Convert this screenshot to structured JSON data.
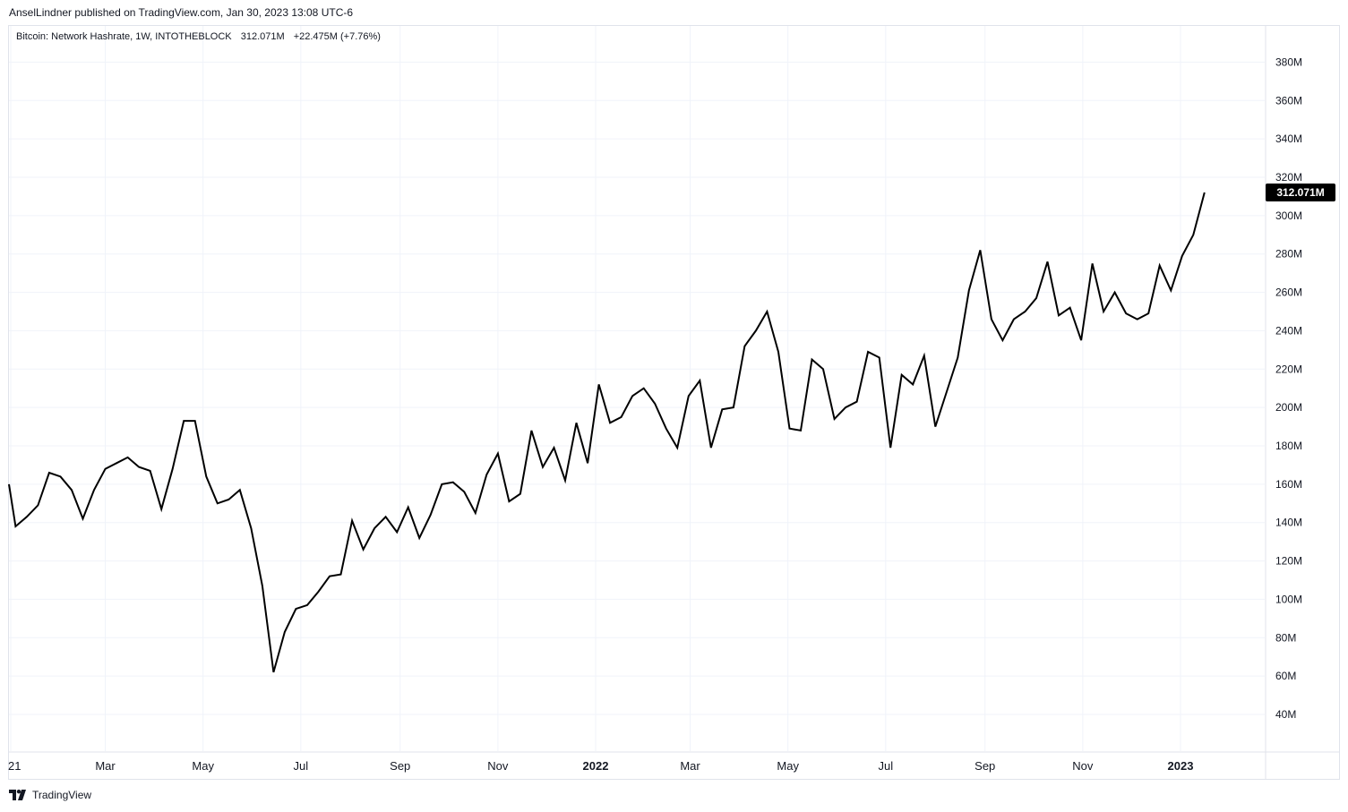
{
  "header": {
    "publisher": "AnselLindner published on TradingView.com, Jan 30, 2023 13:08 UTC-6"
  },
  "legend": {
    "symbol": "Bitcoin: Network Hashrate, 1W, INTOTHEBLOCK",
    "last_value": "312.071M",
    "change": "+22.475M (+7.76%)"
  },
  "price_tag": {
    "label": "312.071M",
    "value": 312.071,
    "color": "#000000"
  },
  "footer": {
    "brand": "TradingView",
    "logo_icon": "tradingview-logo-icon"
  },
  "colors": {
    "line": "#000000",
    "grid": "#f0f3fa",
    "axis_text": "#131722",
    "border": "#e0e3eb"
  },
  "chart_data": {
    "type": "line",
    "title": "Bitcoin: Network Hashrate, 1W, INTOTHEBLOCK",
    "unit": "M",
    "ylim": [
      20,
      400
    ],
    "yticks": [
      40,
      60,
      80,
      100,
      120,
      140,
      160,
      180,
      200,
      220,
      240,
      260,
      280,
      300,
      320,
      340,
      360,
      380
    ],
    "ytick_labels": [
      "40M",
      "60M",
      "80M",
      "100M",
      "120M",
      "140M",
      "160M",
      "180M",
      "200M",
      "220M",
      "240M",
      "260M",
      "280M",
      "300M",
      "320M",
      "340M",
      "360M",
      "380M"
    ],
    "x_range": [
      "2020-12-28",
      "2023-04-03"
    ],
    "xticks": [
      {
        "label": "21",
        "date": "2021-01-01",
        "bold": false
      },
      {
        "label": "Mar",
        "date": "2021-03-01",
        "bold": false
      },
      {
        "label": "May",
        "date": "2021-05-01",
        "bold": false
      },
      {
        "label": "Jul",
        "date": "2021-07-01",
        "bold": false
      },
      {
        "label": "Sep",
        "date": "2021-09-01",
        "bold": false
      },
      {
        "label": "Nov",
        "date": "2021-11-01",
        "bold": false
      },
      {
        "label": "2022",
        "date": "2022-01-01",
        "bold": true
      },
      {
        "label": "Mar",
        "date": "2022-03-01",
        "bold": false
      },
      {
        "label": "May",
        "date": "2022-05-01",
        "bold": false
      },
      {
        "label": "Jul",
        "date": "2022-07-01",
        "bold": false
      },
      {
        "label": "Sep",
        "date": "2022-09-01",
        "bold": false
      },
      {
        "label": "Nov",
        "date": "2022-11-01",
        "bold": false
      },
      {
        "label": "2023",
        "date": "2023-01-01",
        "bold": true
      }
    ],
    "grid": true,
    "series": [
      {
        "values": [
          [
            "2020-12-28",
            160
          ],
          [
            "2021-01-04",
            138
          ],
          [
            "2021-01-11",
            143
          ],
          [
            "2021-01-18",
            149
          ],
          [
            "2021-01-25",
            166
          ],
          [
            "2021-02-01",
            164
          ],
          [
            "2021-02-08",
            157
          ],
          [
            "2021-02-15",
            142
          ],
          [
            "2021-02-22",
            157
          ],
          [
            "2021-03-01",
            168
          ],
          [
            "2021-03-08",
            171
          ],
          [
            "2021-03-15",
            174
          ],
          [
            "2021-03-22",
            169
          ],
          [
            "2021-03-29",
            167
          ],
          [
            "2021-04-05",
            147
          ],
          [
            "2021-04-12",
            168
          ],
          [
            "2021-04-19",
            193
          ],
          [
            "2021-04-26",
            193
          ],
          [
            "2021-05-03",
            164
          ],
          [
            "2021-05-10",
            150
          ],
          [
            "2021-05-17",
            152
          ],
          [
            "2021-05-24",
            157
          ],
          [
            "2021-05-31",
            137
          ],
          [
            "2021-06-07",
            107
          ],
          [
            "2021-06-14",
            62
          ],
          [
            "2021-06-21",
            83
          ],
          [
            "2021-06-28",
            95
          ],
          [
            "2021-07-05",
            97
          ],
          [
            "2021-07-12",
            104
          ],
          [
            "2021-07-19",
            112
          ],
          [
            "2021-07-26",
            113
          ],
          [
            "2021-08-02",
            141
          ],
          [
            "2021-08-09",
            126
          ],
          [
            "2021-08-16",
            137
          ],
          [
            "2021-08-23",
            143
          ],
          [
            "2021-08-30",
            135
          ],
          [
            "2021-09-06",
            148
          ],
          [
            "2021-09-13",
            132
          ],
          [
            "2021-09-20",
            144
          ],
          [
            "2021-09-27",
            160
          ],
          [
            "2021-10-04",
            161
          ],
          [
            "2021-10-11",
            156
          ],
          [
            "2021-10-18",
            145
          ],
          [
            "2021-10-25",
            165
          ],
          [
            "2021-11-01",
            176
          ],
          [
            "2021-11-08",
            151
          ],
          [
            "2021-11-15",
            155
          ],
          [
            "2021-11-22",
            188
          ],
          [
            "2021-11-29",
            169
          ],
          [
            "2021-12-06",
            179
          ],
          [
            "2021-12-13",
            162
          ],
          [
            "2021-12-20",
            192
          ],
          [
            "2021-12-27",
            171
          ],
          [
            "2022-01-03",
            212
          ],
          [
            "2022-01-10",
            192
          ],
          [
            "2022-01-17",
            195
          ],
          [
            "2022-01-24",
            206
          ],
          [
            "2022-01-31",
            210
          ],
          [
            "2022-02-07",
            202
          ],
          [
            "2022-02-14",
            189
          ],
          [
            "2022-02-21",
            179
          ],
          [
            "2022-02-28",
            206
          ],
          [
            "2022-03-07",
            214
          ],
          [
            "2022-03-14",
            179
          ],
          [
            "2022-03-21",
            199
          ],
          [
            "2022-03-28",
            200
          ],
          [
            "2022-04-04",
            232
          ],
          [
            "2022-04-11",
            240
          ],
          [
            "2022-04-18",
            250
          ],
          [
            "2022-04-25",
            229
          ],
          [
            "2022-05-02",
            189
          ],
          [
            "2022-05-09",
            188
          ],
          [
            "2022-05-16",
            225
          ],
          [
            "2022-05-23",
            220
          ],
          [
            "2022-05-30",
            194
          ],
          [
            "2022-06-06",
            200
          ],
          [
            "2022-06-13",
            203
          ],
          [
            "2022-06-20",
            229
          ],
          [
            "2022-06-27",
            226
          ],
          [
            "2022-07-04",
            179
          ],
          [
            "2022-07-11",
            217
          ],
          [
            "2022-07-18",
            212
          ],
          [
            "2022-07-25",
            227
          ],
          [
            "2022-08-01",
            190
          ],
          [
            "2022-08-08",
            208
          ],
          [
            "2022-08-15",
            226
          ],
          [
            "2022-08-22",
            261
          ],
          [
            "2022-08-29",
            282
          ],
          [
            "2022-09-05",
            246
          ],
          [
            "2022-09-12",
            235
          ],
          [
            "2022-09-19",
            246
          ],
          [
            "2022-09-26",
            250
          ],
          [
            "2022-10-03",
            257
          ],
          [
            "2022-10-10",
            276
          ],
          [
            "2022-10-17",
            248
          ],
          [
            "2022-10-24",
            252
          ],
          [
            "2022-10-31",
            235
          ],
          [
            "2022-11-07",
            275
          ],
          [
            "2022-11-14",
            250
          ],
          [
            "2022-11-21",
            260
          ],
          [
            "2022-11-28",
            249
          ],
          [
            "2022-12-05",
            246
          ],
          [
            "2022-12-12",
            249
          ],
          [
            "2022-12-19",
            274
          ],
          [
            "2022-12-26",
            261
          ],
          [
            "2023-01-02",
            279
          ],
          [
            "2023-01-09",
            290
          ],
          [
            "2023-01-16",
            312.071
          ]
        ]
      }
    ]
  }
}
